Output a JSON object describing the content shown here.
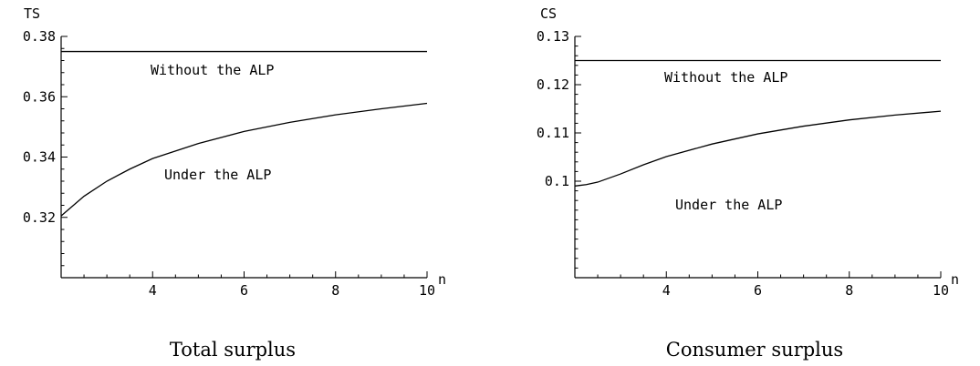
{
  "chart_data": [
    {
      "type": "line",
      "caption": "Total surplus",
      "ylabel": "TS",
      "xlabel": "n",
      "xlim": [
        2,
        10
      ],
      "ylim": [
        0.3,
        0.38
      ],
      "xticks": [
        "4",
        "6",
        "8",
        "10"
      ],
      "xtick_values": [
        4,
        6,
        8,
        10
      ],
      "yticks": [
        "0.38",
        "0.36",
        "0.34",
        "0.32"
      ],
      "ytick_values": [
        0.38,
        0.36,
        0.34,
        0.32
      ],
      "series": [
        {
          "name": "Without the ALP",
          "x": [
            2,
            10
          ],
          "y": [
            0.375,
            0.375
          ]
        },
        {
          "name": "Under the ALP",
          "x": [
            2,
            2.5,
            3,
            3.5,
            4,
            5,
            6,
            7,
            8,
            9,
            10
          ],
          "y": [
            0.3205,
            0.327,
            0.332,
            0.336,
            0.3395,
            0.3445,
            0.3485,
            0.3515,
            0.354,
            0.356,
            0.3578
          ]
        }
      ]
    },
    {
      "type": "line",
      "caption": "Consumer surplus",
      "ylabel": "CS",
      "xlabel": "n",
      "xlim": [
        2,
        10
      ],
      "ylim": [
        0.08,
        0.13
      ],
      "xticks": [
        "4",
        "6",
        "8",
        "10"
      ],
      "xtick_values": [
        4,
        6,
        8,
        10
      ],
      "yticks": [
        "0.13",
        "0.12",
        "0.11",
        "0.1"
      ],
      "ytick_values": [
        0.13,
        0.12,
        0.11,
        0.1
      ],
      "series": [
        {
          "name": "Without the ALP",
          "x": [
            2,
            10
          ],
          "y": [
            0.125,
            0.125
          ]
        },
        {
          "name": "Under the ALP",
          "x": [
            2,
            2.25,
            2.5,
            3,
            3.5,
            4,
            5,
            6,
            7,
            8,
            9,
            10
          ],
          "y": [
            0.099,
            0.0993,
            0.0998,
            0.1015,
            0.1034,
            0.1051,
            0.1077,
            0.1098,
            0.1114,
            0.1127,
            0.1137,
            0.1145
          ]
        }
      ]
    }
  ]
}
